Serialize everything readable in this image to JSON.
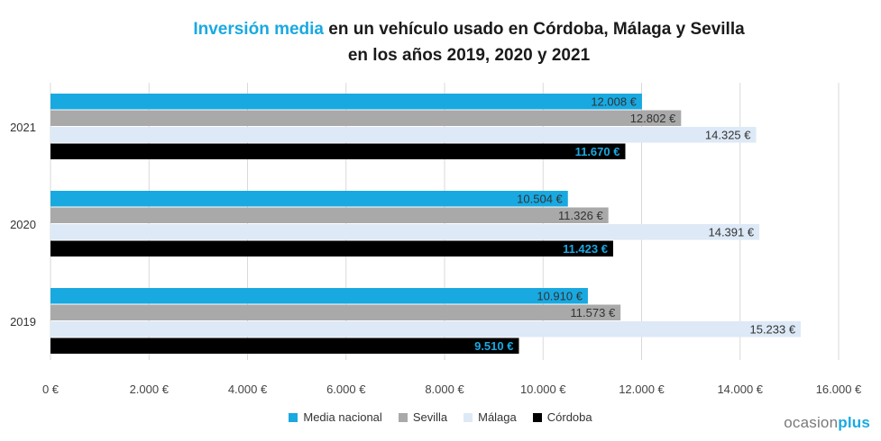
{
  "title": {
    "highlight": "Inversión media",
    "rest": " en un vehículo usado en Córdoba, Málaga y Sevilla",
    "line2": "en los años 2019, 2020 y 2021"
  },
  "brand": {
    "word1": "ocasion",
    "word2": "plus"
  },
  "chart_data": {
    "type": "bar",
    "orientation": "horizontal",
    "categories": [
      "2021",
      "2020",
      "2019"
    ],
    "series": [
      {
        "name": "Media nacional",
        "color": "#19a9e1",
        "label_color": "#333333",
        "values": [
          12008,
          10504,
          10910
        ],
        "labels": [
          "12.008 €",
          "10.504 €",
          "10.910 €"
        ]
      },
      {
        "name": "Sevilla",
        "color": "#a9a9a9",
        "label_color": "#333333",
        "values": [
          12802,
          11326,
          11573
        ],
        "labels": [
          "12.802 €",
          "11.326 €",
          "11.573 €"
        ]
      },
      {
        "name": "Málaga",
        "color": "#dde9f6",
        "label_color": "#333333",
        "values": [
          14325,
          14391,
          15233
        ],
        "labels": [
          "14.325 €",
          "14.391 €",
          "15.233 €"
        ]
      },
      {
        "name": "Córdoba",
        "color": "#000000",
        "label_color": "#19a9e1",
        "values": [
          11670,
          11423,
          9510
        ],
        "labels": [
          "11.670 €",
          "11.423 €",
          "9.510 €"
        ]
      }
    ],
    "xlim": [
      0,
      16000
    ],
    "xticks": [
      0,
      2000,
      4000,
      6000,
      8000,
      10000,
      12000,
      14000,
      16000
    ],
    "xtick_labels": [
      "0 €",
      "2.000 €",
      "4.000 €",
      "6.000 €",
      "8.000 €",
      "10.000 €",
      "12.000 €",
      "14.000 €",
      "16.000 €"
    ],
    "grid": true,
    "legend_position": "bottom"
  }
}
